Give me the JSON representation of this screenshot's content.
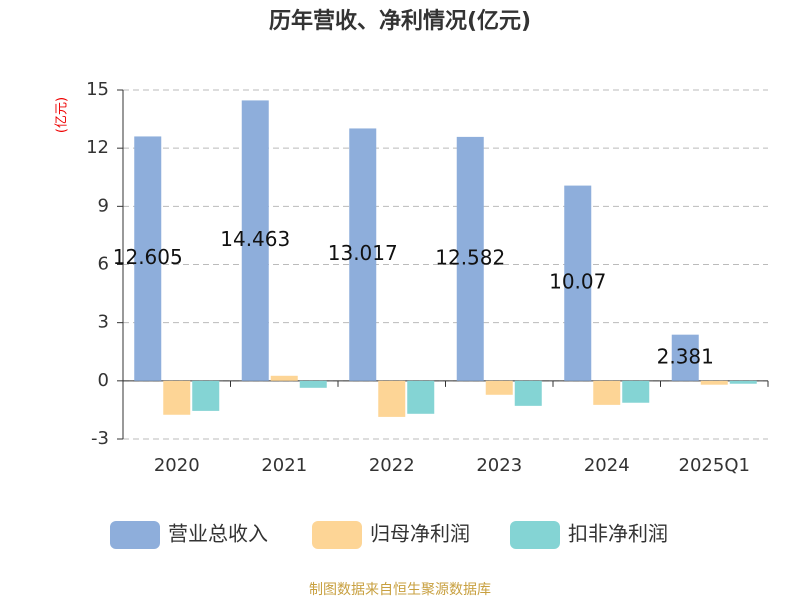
{
  "chart_data": {
    "type": "bar",
    "title": "历年营收、净利情况(亿元)",
    "y_axis_label": "(亿元)",
    "categories": [
      "2020",
      "2021",
      "2022",
      "2023",
      "2024",
      "2025Q1"
    ],
    "series": [
      {
        "name": "营业总收入",
        "color": "#8eaedb",
        "values": [
          12.605,
          14.463,
          13.017,
          12.582,
          10.07,
          2.381
        ]
      },
      {
        "name": "归母净利润",
        "color": "#fdd596",
        "values": [
          -1.75,
          0.26,
          -1.86,
          -0.72,
          -1.24,
          -0.2
        ]
      },
      {
        "name": "扣非净利润",
        "color": "#84d4d4",
        "values": [
          -1.55,
          -0.36,
          -1.7,
          -1.29,
          -1.13,
          -0.15
        ]
      }
    ],
    "ylim": [
      -3,
      15
    ],
    "yticks": [
      -3,
      0,
      3,
      6,
      9,
      12,
      15
    ],
    "grid": true,
    "source": "制图数据来自恒生聚源数据库"
  }
}
